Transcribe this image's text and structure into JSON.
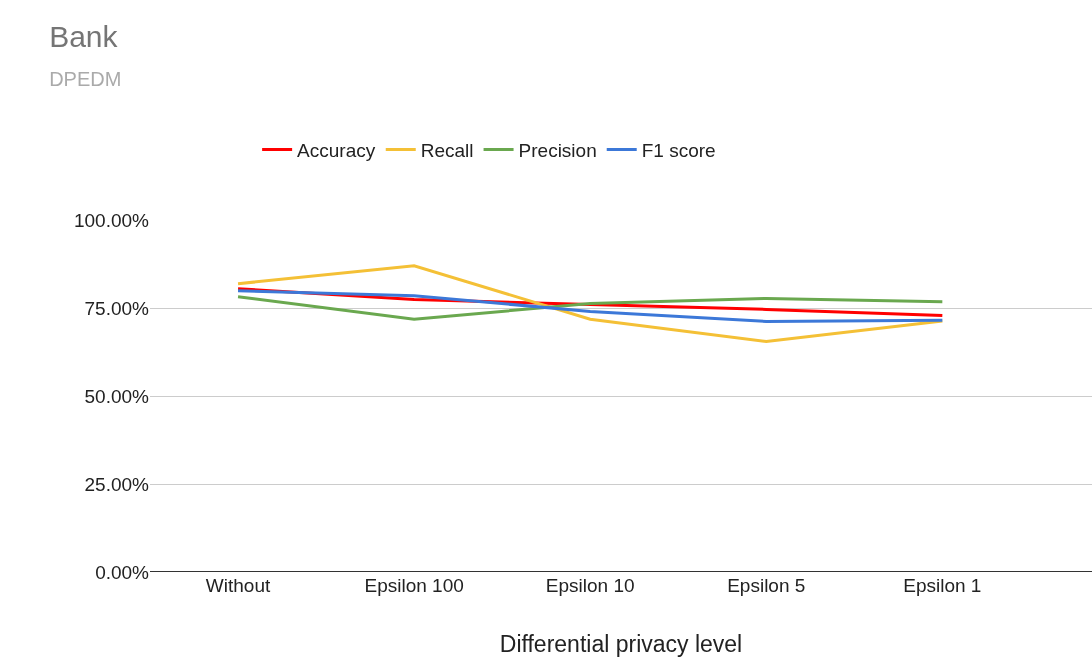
{
  "chart_data": {
    "type": "line",
    "title": "Bank",
    "subtitle": "DPEDM",
    "xlabel": "Differential privacy level",
    "categories": [
      "Without",
      "Epsilon 100",
      "Epsilon 10",
      "Epsilon 5",
      "Epsilon 1"
    ],
    "series": [
      {
        "name": "Accuracy",
        "color": "#ff0000",
        "values": [
          80.5,
          77.4,
          76.0,
          74.6,
          72.9
        ]
      },
      {
        "name": "Recall",
        "color": "#f4c036",
        "values": [
          81.9,
          87.0,
          71.8,
          65.5,
          71.3
        ]
      },
      {
        "name": "Precision",
        "color": "#6aa84f",
        "values": [
          78.2,
          71.8,
          76.3,
          77.7,
          76.8
        ]
      },
      {
        "name": "F1 score",
        "color": "#3c78d8",
        "values": [
          79.9,
          78.5,
          74.0,
          71.2,
          71.5
        ]
      }
    ],
    "ylim": [
      0,
      100
    ],
    "yticks": [
      {
        "value": 0,
        "label": "0.00%"
      },
      {
        "value": 25,
        "label": "25.00%"
      },
      {
        "value": 50,
        "label": "50.00%"
      },
      {
        "value": 75,
        "label": "75.00%"
      },
      {
        "value": 100,
        "label": "100.00%"
      }
    ],
    "grid": "y",
    "legend": "top",
    "marker": "none",
    "line_style": "solid"
  }
}
